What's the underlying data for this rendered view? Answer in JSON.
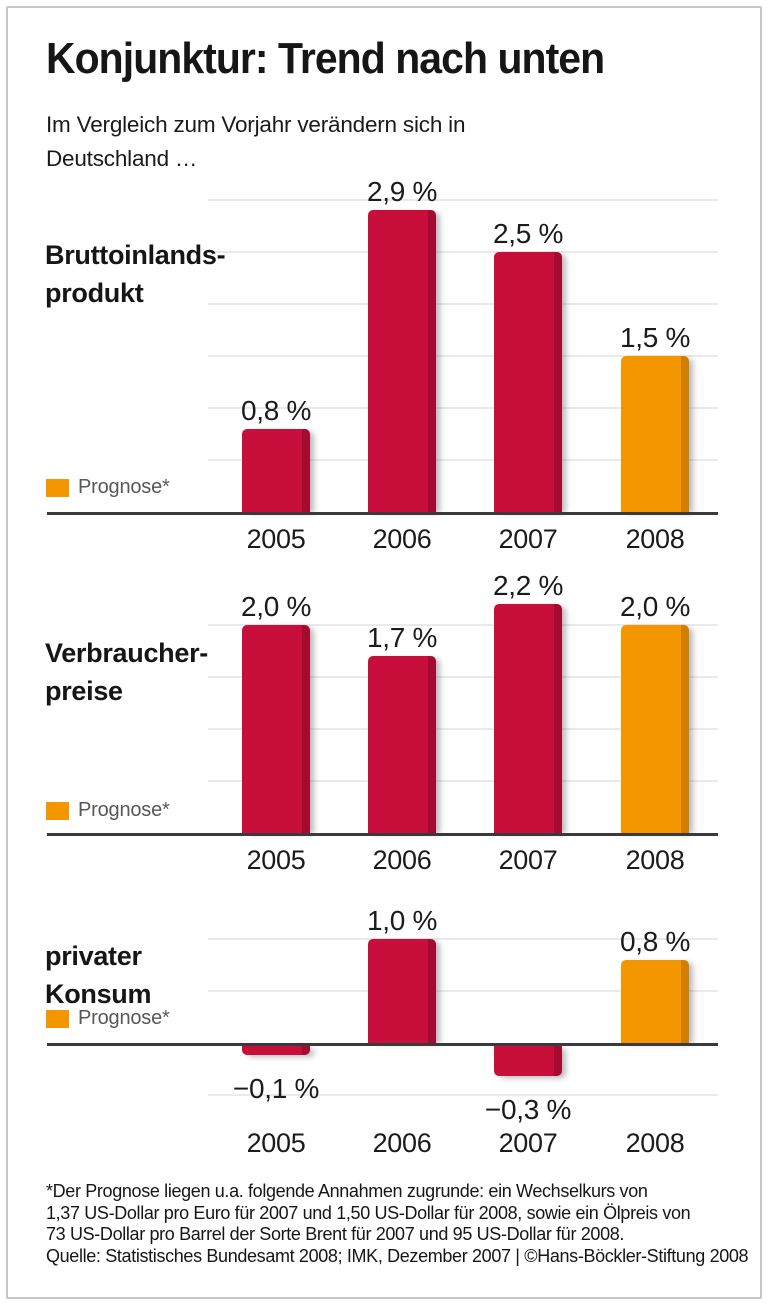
{
  "title": "Konjunktur: Trend nach unten",
  "subtitle": "Im Vergleich zum Vorjahr verändern sich in\nDeutschland …",
  "legend_label": "Prognose*",
  "colors": {
    "bar_red": "#c80f3b",
    "bar_red_edge": "#a30c30",
    "prognose_orange": "#f49600",
    "prognose_orange_edge": "#d07e00",
    "gridline": "#eaeaec",
    "axis": "#3a3a3c",
    "legend_text": "#58585a",
    "frame": "#c7c7c9"
  },
  "footnote_lines": [
    "*Der Prognose liegen u.a. folgende Annahmen zugrunde: ein Wechselkurs von",
    "1,37 US-Dollar pro Euro für 2007 und 1,50 US-Dollar für 2008, sowie ein Ölpreis von",
    "73 US-Dollar pro Barrel der Sorte Brent für 2007 und 95 US-Dollar für 2008.",
    "Quelle: Statistisches Bundesamt 2008; IMK, Dezember 2007 | ©Hans-Böckler-Stiftung 2008"
  ],
  "chart_data": [
    {
      "type": "bar",
      "name": "Bruttoinlandsprodukt",
      "label_lines": [
        "Bruttoinlands-",
        "produkt"
      ],
      "categories": [
        "2005",
        "2006",
        "2007",
        "2008"
      ],
      "values": [
        0.8,
        2.9,
        2.5,
        1.5
      ],
      "value_labels": [
        "0,8 %",
        "2,9 %",
        "2,5 %",
        "1,5 %"
      ],
      "prognose_index": 3,
      "legend": "Prognose*",
      "ylabel": "%",
      "ylim": [
        0,
        3.0
      ],
      "gridlines": [
        0.5,
        1.0,
        1.5,
        2.0,
        2.5,
        3.0
      ],
      "grid": true,
      "legend_position": "bottom-left"
    },
    {
      "type": "bar",
      "name": "Verbraucherpreise",
      "label_lines": [
        "Verbraucher-",
        "preise"
      ],
      "categories": [
        "2005",
        "2006",
        "2007",
        "2008"
      ],
      "values": [
        2.0,
        1.7,
        2.2,
        2.0
      ],
      "value_labels": [
        "2,0 %",
        "1,7 %",
        "2,2 %",
        "2,0 %"
      ],
      "prognose_index": 3,
      "legend": "Prognose*",
      "ylabel": "%",
      "ylim": [
        0,
        2.2
      ],
      "gridlines": [
        0.5,
        1.0,
        1.5,
        2.0
      ],
      "grid": true,
      "legend_position": "bottom-left"
    },
    {
      "type": "bar",
      "name": "privater Konsum",
      "label_lines": [
        "privater",
        "Konsum"
      ],
      "categories": [
        "2005",
        "2006",
        "2007",
        "2008"
      ],
      "values": [
        -0.1,
        1.0,
        -0.3,
        0.8
      ],
      "value_labels": [
        "−0,1 %",
        "1,0 %",
        "−0,3 %",
        "0,8 %"
      ],
      "prognose_index": 3,
      "legend": "Prognose*",
      "ylabel": "%",
      "ylim": [
        -0.5,
        1.0
      ],
      "gridlines": [
        -0.5,
        0.5,
        1.0
      ],
      "grid": true,
      "legend_position": "left"
    }
  ]
}
